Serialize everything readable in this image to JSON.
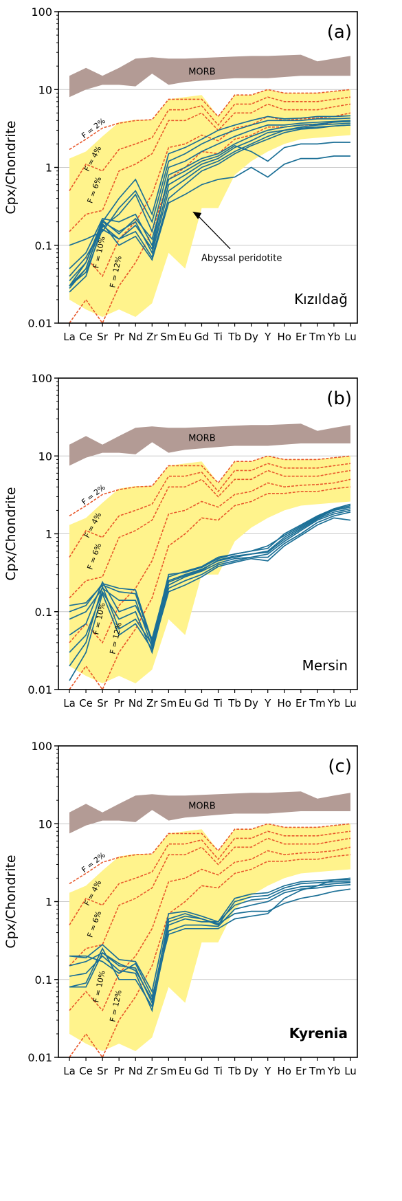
{
  "figure": {
    "y_axis_label": "Cpx/Chondrite",
    "y_ticks": [
      "0.01",
      "0.1",
      "1",
      "10",
      "100"
    ],
    "x_ticks": [
      "La",
      "Ce",
      "Sr",
      "Pr",
      "Nd",
      "Zr",
      "Sm",
      "Eu",
      "Gd",
      "Ti",
      "Tb",
      "Dy",
      "Y",
      "Ho",
      "Er",
      "Tm",
      "Yb",
      "Lu"
    ],
    "morb_label": "MORB",
    "abyssal_label": "Abyssal peridotite",
    "melting_labels": [
      "F = 2%",
      "F = 4%",
      "F = 6%",
      "F = 10%",
      "F = 12%"
    ]
  },
  "colors": {
    "morb_band": "#b39b95",
    "abyssal_field": "#fff38c",
    "melting_curves": "#e8572a",
    "samples": "#1b6f96",
    "gridline": "#c8c8c8",
    "axis": "#000000"
  },
  "chart_data": [
    {
      "type": "line",
      "panel_label": "(a)",
      "locality": "Kızıldağ",
      "locality_bold": false,
      "yscale": "log",
      "ylim": [
        0.01,
        100
      ],
      "grid": true,
      "categories": [
        "La",
        "Ce",
        "Sr",
        "Pr",
        "Nd",
        "Zr",
        "Sm",
        "Eu",
        "Gd",
        "Ti",
        "Tb",
        "Dy",
        "Y",
        "Ho",
        "Er",
        "Tm",
        "Yb",
        "Lu"
      ],
      "morb_band": {
        "upper": [
          15,
          19,
          15,
          19,
          25,
          26,
          25,
          25,
          25.5,
          26,
          26.5,
          27,
          27,
          27.5,
          28,
          23,
          25,
          27
        ],
        "lower": [
          8,
          10,
          11.5,
          11.5,
          11,
          16,
          11.5,
          12.5,
          13,
          13.5,
          14,
          14,
          14,
          14.5,
          15,
          15,
          15,
          15
        ]
      },
      "abyssal_field": {
        "upper": [
          1.3,
          1.6,
          2.5,
          3.8,
          4.1,
          4.1,
          7.5,
          8,
          8.5,
          4.5,
          8.5,
          8.5,
          10,
          9,
          9,
          9,
          9.5,
          10
        ],
        "lower": [
          0.02,
          0.015,
          0.012,
          0.015,
          0.012,
          0.018,
          0.08,
          0.05,
          0.3,
          0.3,
          0.8,
          1.2,
          1.6,
          2,
          2.3,
          2.4,
          2.5,
          2.6
        ]
      },
      "melting_curves": [
        {
          "name": "F = 2%",
          "values": [
            1.7,
            2.3,
            3.2,
            3.7,
            4,
            4.1,
            7.5,
            7.5,
            7.5,
            4.5,
            8.5,
            8.5,
            10,
            9,
            9,
            9,
            9.5,
            10
          ]
        },
        {
          "name": "F = 4%",
          "values": [
            0.5,
            1.1,
            0.9,
            1.7,
            2,
            2.4,
            5.5,
            5.5,
            6.2,
            3.5,
            6.5,
            6.5,
            8,
            7,
            7,
            7,
            7.5,
            8
          ]
        },
        {
          "name": "F = 6%",
          "values": [
            0.15,
            0.25,
            0.28,
            0.9,
            1.1,
            1.5,
            4,
            4,
            5,
            3,
            5,
            5,
            6.5,
            5.5,
            5.5,
            5.5,
            6,
            6.5
          ]
        },
        {
          "name": "F = 10%",
          "values": [
            0.04,
            0.07,
            0.04,
            0.12,
            0.2,
            0.45,
            1.8,
            2,
            2.6,
            2.2,
            3.2,
            3.5,
            4.5,
            4,
            4.2,
            4.3,
            4.5,
            5
          ]
        },
        {
          "name": "F = 12%",
          "values": [
            0.01,
            0.02,
            0.01,
            0.03,
            0.06,
            0.15,
            0.7,
            1,
            1.6,
            1.5,
            2.3,
            2.6,
            3.3,
            3.3,
            3.5,
            3.5,
            3.8,
            4
          ]
        }
      ],
      "samples": [
        [
          0.03,
          0.05,
          0.2,
          0.15,
          0.2,
          0.08,
          0.5,
          0.7,
          1,
          1.2,
          1.6,
          2,
          2.5,
          3,
          3.3,
          3.5,
          3.6,
          3.7
        ],
        [
          0.025,
          0.04,
          0.18,
          0.12,
          0.15,
          0.07,
          0.4,
          0.6,
          0.9,
          1.1,
          1.5,
          1.9,
          2.3,
          2.8,
          3.1,
          3.2,
          3.4,
          3.5
        ],
        [
          0.1,
          0.12,
          0.15,
          0.3,
          0.5,
          0.2,
          1.2,
          1.5,
          2,
          2.5,
          3,
          3.5,
          4,
          4,
          4,
          4.2,
          4.2,
          4.3
        ],
        [
          0.05,
          0.08,
          0.22,
          0.2,
          0.25,
          0.1,
          0.8,
          1,
          1.3,
          1.5,
          2,
          2.5,
          3,
          3.3,
          3.5,
          3.6,
          3.8,
          3.9
        ],
        [
          0.035,
          0.06,
          0.2,
          0.4,
          0.7,
          0.25,
          1.5,
          1.8,
          2.3,
          3,
          3.5,
          4,
          4.5,
          4.2,
          4.3,
          4.5,
          4.5,
          4.6
        ],
        [
          0.03,
          0.045,
          0.16,
          0.12,
          0.18,
          0.09,
          0.6,
          0.8,
          1.1,
          1.3,
          1.8,
          2.2,
          2.8,
          3,
          3.2,
          3.3,
          3.4,
          3.5
        ],
        [
          0.04,
          0.07,
          0.17,
          0.25,
          0.45,
          0.15,
          1,
          1.2,
          1.6,
          2,
          2.5,
          3,
          3.5,
          3.5,
          3.7,
          3.8,
          3.9,
          4
        ],
        [
          0.028,
          0.05,
          0.19,
          0.1,
          0.13,
          0.065,
          0.35,
          0.45,
          0.6,
          0.7,
          0.75,
          1,
          0.75,
          1.1,
          1.3,
          1.3,
          1.4,
          1.4
        ],
        [
          0.03,
          0.06,
          0.21,
          0.14,
          0.22,
          0.12,
          0.7,
          0.9,
          1.2,
          1.4,
          1.9,
          1.6,
          1.2,
          1.8,
          2,
          2,
          2.1,
          2.1
        ]
      ]
    },
    {
      "type": "line",
      "panel_label": "(b)",
      "locality": "Mersin",
      "locality_bold": false,
      "yscale": "log",
      "ylim": [
        0.01,
        100
      ],
      "grid": true,
      "categories": [
        "La",
        "Ce",
        "Sr",
        "Pr",
        "Nd",
        "Zr",
        "Sm",
        "Eu",
        "Gd",
        "Ti",
        "Tb",
        "Dy",
        "Y",
        "Ho",
        "Er",
        "Tm",
        "Yb",
        "Lu"
      ],
      "morb_band": {
        "upper": [
          14,
          18,
          14,
          18,
          23,
          24,
          23,
          23,
          23.5,
          24,
          24.5,
          25,
          25,
          25.5,
          26,
          21,
          23,
          25
        ],
        "lower": [
          7.5,
          9.5,
          11,
          11,
          10.5,
          15,
          11,
          12,
          12.5,
          13,
          13.5,
          13.5,
          13.5,
          14,
          14.5,
          14.5,
          14.5,
          14.5
        ]
      },
      "abyssal_field": {
        "upper": [
          1.3,
          1.6,
          2.5,
          3.8,
          4.1,
          4.1,
          7.5,
          8,
          8.5,
          4.5,
          8.5,
          8.5,
          10,
          9,
          9,
          9,
          9.5,
          10
        ],
        "lower": [
          0.02,
          0.015,
          0.012,
          0.015,
          0.012,
          0.018,
          0.08,
          0.05,
          0.3,
          0.3,
          0.8,
          1.2,
          1.6,
          2,
          2.3,
          2.4,
          2.5,
          2.6
        ]
      },
      "melting_curves": [
        {
          "name": "F = 2%",
          "values": [
            1.7,
            2.3,
            3.2,
            3.7,
            4,
            4.1,
            7.5,
            7.5,
            7.5,
            4.5,
            8.5,
            8.5,
            10,
            9,
            9,
            9,
            9.5,
            10
          ]
        },
        {
          "name": "F = 4%",
          "values": [
            0.5,
            1.1,
            0.9,
            1.7,
            2,
            2.4,
            5.5,
            5.5,
            6.2,
            3.5,
            6.5,
            6.5,
            8,
            7,
            7,
            7,
            7.5,
            8
          ]
        },
        {
          "name": "F = 6%",
          "values": [
            0.15,
            0.25,
            0.28,
            0.9,
            1.1,
            1.5,
            4,
            4,
            5,
            3,
            5,
            5,
            6.5,
            5.5,
            5.5,
            5.5,
            6,
            6.5
          ]
        },
        {
          "name": "F = 10%",
          "values": [
            0.04,
            0.07,
            0.04,
            0.12,
            0.2,
            0.45,
            1.8,
            2,
            2.6,
            2.2,
            3.2,
            3.5,
            4.5,
            4,
            4.2,
            4.3,
            4.5,
            5
          ]
        },
        {
          "name": "F = 12%",
          "values": [
            0.01,
            0.02,
            0.01,
            0.03,
            0.06,
            0.15,
            0.7,
            1,
            1.6,
            1.5,
            2.3,
            2.6,
            3.3,
            3.3,
            3.5,
            3.5,
            3.8,
            4
          ]
        }
      ],
      "samples": [
        [
          0.12,
          0.13,
          0.22,
          0.18,
          0.17,
          0.04,
          0.25,
          0.3,
          0.35,
          0.45,
          0.5,
          0.55,
          0.6,
          0.9,
          1.2,
          1.6,
          2,
          2.2
        ],
        [
          0.08,
          0.1,
          0.2,
          0.14,
          0.14,
          0.035,
          0.22,
          0.28,
          0.33,
          0.42,
          0.48,
          0.5,
          0.55,
          0.8,
          1.1,
          1.5,
          1.8,
          2
        ],
        [
          0.05,
          0.07,
          0.24,
          0.1,
          0.12,
          0.045,
          0.28,
          0.33,
          0.38,
          0.5,
          0.55,
          0.6,
          0.65,
          1,
          1.3,
          1.7,
          2.1,
          2.4
        ],
        [
          0.03,
          0.05,
          0.18,
          0.08,
          0.1,
          0.03,
          0.2,
          0.25,
          0.3,
          0.4,
          0.45,
          0.5,
          0.5,
          0.75,
          1,
          1.4,
          1.7,
          1.9
        ],
        [
          0.02,
          0.04,
          0.21,
          0.06,
          0.08,
          0.038,
          0.24,
          0.29,
          0.34,
          0.46,
          0.52,
          0.55,
          0.58,
          0.85,
          1.15,
          1.55,
          1.9,
          2.1
        ],
        [
          0.013,
          0.03,
          0.17,
          0.05,
          0.07,
          0.033,
          0.18,
          0.22,
          0.28,
          0.38,
          0.43,
          0.48,
          0.45,
          0.7,
          0.95,
          1.3,
          1.6,
          1.5
        ],
        [
          0.1,
          0.12,
          0.23,
          0.2,
          0.19,
          0.042,
          0.3,
          0.32,
          0.37,
          0.48,
          0.55,
          0.6,
          0.7,
          0.95,
          1.25,
          1.65,
          2.05,
          2.3
        ]
      ]
    },
    {
      "type": "line",
      "panel_label": "(c)",
      "locality": "Kyrenia",
      "locality_bold": true,
      "yscale": "log",
      "ylim": [
        0.01,
        100
      ],
      "grid": true,
      "categories": [
        "La",
        "Ce",
        "Sr",
        "Pr",
        "Nd",
        "Zr",
        "Sm",
        "Eu",
        "Gd",
        "Ti",
        "Tb",
        "Dy",
        "Y",
        "Ho",
        "Er",
        "Tm",
        "Yb",
        "Lu"
      ],
      "morb_band": {
        "upper": [
          14,
          18,
          14,
          18,
          23,
          24,
          23,
          23,
          23.5,
          24,
          24.5,
          25,
          25,
          25.5,
          26,
          21,
          23,
          25
        ],
        "lower": [
          7.5,
          9.5,
          11,
          11,
          10.5,
          15,
          11,
          12,
          12.5,
          13,
          13.5,
          13.5,
          13.5,
          14,
          14.5,
          14.5,
          14.5,
          14.5
        ]
      },
      "abyssal_field": {
        "upper": [
          1.3,
          1.6,
          2.5,
          3.8,
          4.1,
          4.1,
          7.5,
          8,
          8.5,
          4.5,
          8.5,
          8.5,
          10,
          9,
          9,
          9,
          9.5,
          10
        ],
        "lower": [
          0.02,
          0.015,
          0.012,
          0.015,
          0.012,
          0.018,
          0.08,
          0.05,
          0.3,
          0.3,
          0.8,
          1.2,
          1.6,
          2,
          2.3,
          2.4,
          2.5,
          2.6
        ]
      },
      "melting_curves": [
        {
          "name": "F = 2%",
          "values": [
            1.7,
            2.3,
            3.2,
            3.7,
            4,
            4.1,
            7.5,
            7.5,
            7.5,
            4.5,
            8.5,
            8.5,
            10,
            9,
            9,
            9,
            9.5,
            10
          ]
        },
        {
          "name": "F = 4%",
          "values": [
            0.5,
            1.1,
            0.9,
            1.7,
            2,
            2.4,
            5.5,
            5.5,
            6.2,
            3.5,
            6.5,
            6.5,
            8,
            7,
            7,
            7,
            7.5,
            8
          ]
        },
        {
          "name": "F = 6%",
          "values": [
            0.15,
            0.25,
            0.28,
            0.9,
            1.1,
            1.5,
            4,
            4,
            5,
            3,
            5,
            5,
            6.5,
            5.5,
            5.5,
            5.5,
            6,
            6.5
          ]
        },
        {
          "name": "F = 10%",
          "values": [
            0.04,
            0.07,
            0.04,
            0.12,
            0.2,
            0.45,
            1.8,
            2,
            2.6,
            2.2,
            3.2,
            3.5,
            4.5,
            4,
            4.2,
            4.3,
            4.5,
            5
          ]
        },
        {
          "name": "F = 12%",
          "values": [
            0.01,
            0.02,
            0.01,
            0.03,
            0.06,
            0.15,
            0.7,
            1,
            1.6,
            1.5,
            2.3,
            2.6,
            3.3,
            3.3,
            3.5,
            3.5,
            3.8,
            4
          ]
        }
      ],
      "samples": [
        [
          0.2,
          0.19,
          0.28,
          0.18,
          0.17,
          0.07,
          0.7,
          0.75,
          0.65,
          0.55,
          1.1,
          1.25,
          1.3,
          1.6,
          1.8,
          1.85,
          1.9,
          1.9
        ],
        [
          0.15,
          0.17,
          0.22,
          0.15,
          0.14,
          0.05,
          0.6,
          0.7,
          0.6,
          0.5,
          1,
          1.15,
          1.2,
          1.5,
          1.7,
          1.75,
          1.8,
          1.8
        ],
        [
          0.11,
          0.12,
          0.2,
          0.13,
          0.12,
          0.04,
          0.5,
          0.6,
          0.55,
          0.55,
          0.9,
          1.05,
          1.1,
          1.4,
          1.55,
          1.6,
          1.7,
          1.75
        ],
        [
          0.08,
          0.09,
          0.25,
          0.1,
          0.1,
          0.045,
          0.42,
          0.5,
          0.5,
          0.48,
          0.8,
          0.9,
          1,
          1.3,
          1.45,
          1.5,
          1.6,
          1.65
        ],
        [
          0.2,
          0.2,
          0.17,
          0.12,
          0.16,
          0.06,
          0.38,
          0.45,
          0.45,
          0.45,
          0.6,
          0.65,
          0.7,
          1.1,
          1.4,
          1.6,
          1.9,
          2
        ],
        [
          0.08,
          0.08,
          0.22,
          0.16,
          0.13,
          0.055,
          0.55,
          0.65,
          0.6,
          0.52,
          0.7,
          0.75,
          0.75,
          0.95,
          1.1,
          1.2,
          1.35,
          1.45
        ]
      ]
    }
  ]
}
